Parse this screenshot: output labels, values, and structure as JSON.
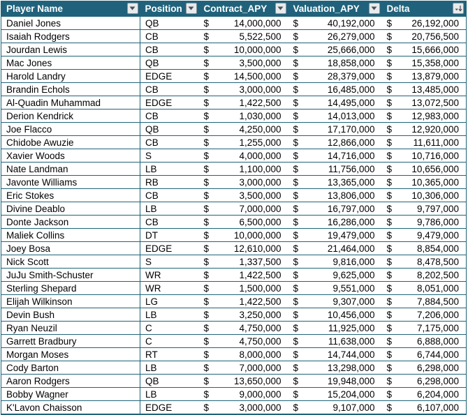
{
  "table": {
    "currency_symbol": "$",
    "columns": [
      {
        "label": "Player Name",
        "filter": "dropdown"
      },
      {
        "label": "Position",
        "filter": "dropdown"
      },
      {
        "label": "Contract_APY",
        "filter": "dropdown"
      },
      {
        "label": "Valuation_APY",
        "filter": "dropdown"
      },
      {
        "label": "Delta",
        "filter": "sort-descending"
      }
    ],
    "rows": [
      {
        "name": "Daniel Jones",
        "position": "QB",
        "contract": "14,000,000",
        "valuation": "40,192,000",
        "delta": "26,192,000"
      },
      {
        "name": "Isaiah Rodgers",
        "position": "CB",
        "contract": "5,522,500",
        "valuation": "26,279,000",
        "delta": "20,756,500"
      },
      {
        "name": "Jourdan Lewis",
        "position": "CB",
        "contract": "10,000,000",
        "valuation": "25,666,000",
        "delta": "15,666,000"
      },
      {
        "name": "Mac Jones",
        "position": "QB",
        "contract": "3,500,000",
        "valuation": "18,858,000",
        "delta": "15,358,000"
      },
      {
        "name": "Harold Landry",
        "position": "EDGE",
        "contract": "14,500,000",
        "valuation": "28,379,000",
        "delta": "13,879,000"
      },
      {
        "name": "Brandin Echols",
        "position": "CB",
        "contract": "3,000,000",
        "valuation": "16,485,000",
        "delta": "13,485,000"
      },
      {
        "name": "Al-Quadin Muhammad",
        "position": "EDGE",
        "contract": "1,422,500",
        "valuation": "14,495,000",
        "delta": "13,072,500"
      },
      {
        "name": "Derion Kendrick",
        "position": "CB",
        "contract": "1,030,000",
        "valuation": "14,013,000",
        "delta": "12,983,000"
      },
      {
        "name": "Joe Flacco",
        "position": "QB",
        "contract": "4,250,000",
        "valuation": "17,170,000",
        "delta": "12,920,000"
      },
      {
        "name": "Chidobe Awuzie",
        "position": "CB",
        "contract": "1,255,000",
        "valuation": "12,866,000",
        "delta": "11,611,000"
      },
      {
        "name": "Xavier Woods",
        "position": "S",
        "contract": "4,000,000",
        "valuation": "14,716,000",
        "delta": "10,716,000"
      },
      {
        "name": "Nate Landman",
        "position": "LB",
        "contract": "1,100,000",
        "valuation": "11,756,000",
        "delta": "10,656,000"
      },
      {
        "name": "Javonte Williams",
        "position": "RB",
        "contract": "3,000,000",
        "valuation": "13,365,000",
        "delta": "10,365,000"
      },
      {
        "name": "Eric Stokes",
        "position": "CB",
        "contract": "3,500,000",
        "valuation": "13,806,000",
        "delta": "10,306,000"
      },
      {
        "name": "Divine Deablo",
        "position": "LB",
        "contract": "7,000,000",
        "valuation": "16,797,000",
        "delta": "9,797,000"
      },
      {
        "name": "Donte Jackson",
        "position": "CB",
        "contract": "6,500,000",
        "valuation": "16,286,000",
        "delta": "9,786,000"
      },
      {
        "name": "Maliek Collins",
        "position": "DT",
        "contract": "10,000,000",
        "valuation": "19,479,000",
        "delta": "9,479,000"
      },
      {
        "name": "Joey Bosa",
        "position": "EDGE",
        "contract": "12,610,000",
        "valuation": "21,464,000",
        "delta": "8,854,000"
      },
      {
        "name": "Nick Scott",
        "position": "S",
        "contract": "1,337,500",
        "valuation": "9,816,000",
        "delta": "8,478,500"
      },
      {
        "name": "JuJu Smith-Schuster",
        "position": "WR",
        "contract": "1,422,500",
        "valuation": "9,625,000",
        "delta": "8,202,500"
      },
      {
        "name": "Sterling Shepard",
        "position": "WR",
        "contract": "1,500,000",
        "valuation": "9,551,000",
        "delta": "8,051,000"
      },
      {
        "name": "Elijah Wilkinson",
        "position": "LG",
        "contract": "1,422,500",
        "valuation": "9,307,000",
        "delta": "7,884,500"
      },
      {
        "name": "Devin Bush",
        "position": "LB",
        "contract": "3,250,000",
        "valuation": "10,456,000",
        "delta": "7,206,000"
      },
      {
        "name": "Ryan Neuzil",
        "position": "C",
        "contract": "4,750,000",
        "valuation": "11,925,000",
        "delta": "7,175,000"
      },
      {
        "name": "Garrett Bradbury",
        "position": "C",
        "contract": "4,750,000",
        "valuation": "11,638,000",
        "delta": "6,888,000"
      },
      {
        "name": "Morgan Moses",
        "position": "RT",
        "contract": "8,000,000",
        "valuation": "14,744,000",
        "delta": "6,744,000"
      },
      {
        "name": "Cody Barton",
        "position": "LB",
        "contract": "7,000,000",
        "valuation": "13,298,000",
        "delta": "6,298,000"
      },
      {
        "name": "Aaron Rodgers",
        "position": "QB",
        "contract": "13,650,000",
        "valuation": "19,948,000",
        "delta": "6,298,000"
      },
      {
        "name": "Bobby Wagner",
        "position": "LB",
        "contract": "9,000,000",
        "valuation": "15,204,000",
        "delta": "6,204,000"
      },
      {
        "name": "K'Lavon Chaisson",
        "position": "EDGE",
        "contract": "3,000,000",
        "valuation": "9,107,000",
        "delta": "6,107,000"
      }
    ]
  },
  "colors": {
    "header_bg": "#20627B",
    "header_text": "#FFFFFF",
    "row_border": "#1F6378",
    "cell_bg": "#FFFFFF",
    "cell_text": "#000000",
    "filter_button_bg": "#E8EAEB",
    "filter_button_border": "#8A949E",
    "filter_icon": "#4A4F55"
  }
}
